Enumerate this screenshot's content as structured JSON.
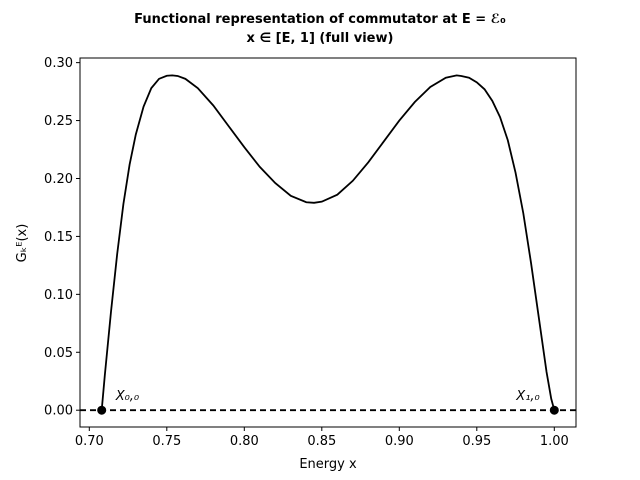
{
  "chart_data": {
    "type": "line",
    "title": "Functional representation of commutator at E = ℰ₀",
    "subtitle": "x ∈ [E, 1] (full view)",
    "xlabel": "Energy x",
    "ylabel": "Gₖᴱ(x)",
    "xlim": [
      0.694,
      1.014
    ],
    "ylim": [
      -0.0145,
      0.304
    ],
    "xticks": [
      0.7,
      0.75,
      0.8,
      0.85,
      0.9,
      0.95,
      1.0
    ],
    "xtick_labels": [
      "0.70",
      "0.75",
      "0.80",
      "0.85",
      "0.90",
      "0.95",
      "1.00"
    ],
    "yticks": [
      0.0,
      0.05,
      0.1,
      0.15,
      0.2,
      0.25,
      0.3
    ],
    "ytick_labels": [
      "0.00",
      "0.05",
      "0.10",
      "0.15",
      "0.20",
      "0.25",
      "0.30"
    ],
    "grid": false,
    "series": [
      {
        "color": "#000000",
        "style": "solid",
        "x": [
          0.708,
          0.71,
          0.714,
          0.718,
          0.722,
          0.726,
          0.73,
          0.735,
          0.74,
          0.745,
          0.75,
          0.7535,
          0.757,
          0.762,
          0.77,
          0.78,
          0.79,
          0.8,
          0.81,
          0.82,
          0.83,
          0.84,
          0.845,
          0.85,
          0.86,
          0.87,
          0.88,
          0.89,
          0.9,
          0.91,
          0.92,
          0.93,
          0.937,
          0.94,
          0.945,
          0.95,
          0.955,
          0.96,
          0.965,
          0.97,
          0.975,
          0.98,
          0.985,
          0.99,
          0.995,
          0.998,
          1.0
        ],
        "y": [
          0.0,
          0.03,
          0.085,
          0.135,
          0.178,
          0.212,
          0.238,
          0.262,
          0.278,
          0.286,
          0.2887,
          0.289,
          0.2885,
          0.286,
          0.278,
          0.263,
          0.245,
          0.227,
          0.21,
          0.196,
          0.185,
          0.1795,
          0.179,
          0.18,
          0.186,
          0.198,
          0.214,
          0.232,
          0.25,
          0.266,
          0.279,
          0.287,
          0.289,
          0.2885,
          0.287,
          0.283,
          0.277,
          0.267,
          0.253,
          0.233,
          0.205,
          0.17,
          0.127,
          0.08,
          0.033,
          0.01,
          0.0
        ]
      },
      {
        "color": "#000000",
        "style": "dashed",
        "x": [
          0.694,
          1.014
        ],
        "y": [
          0.0,
          0.0
        ]
      }
    ],
    "points": [
      {
        "x": 0.708,
        "y": 0.0,
        "label": "X₀,₀"
      },
      {
        "x": 1.0,
        "y": 0.0,
        "label": "X₁,₀"
      }
    ]
  }
}
